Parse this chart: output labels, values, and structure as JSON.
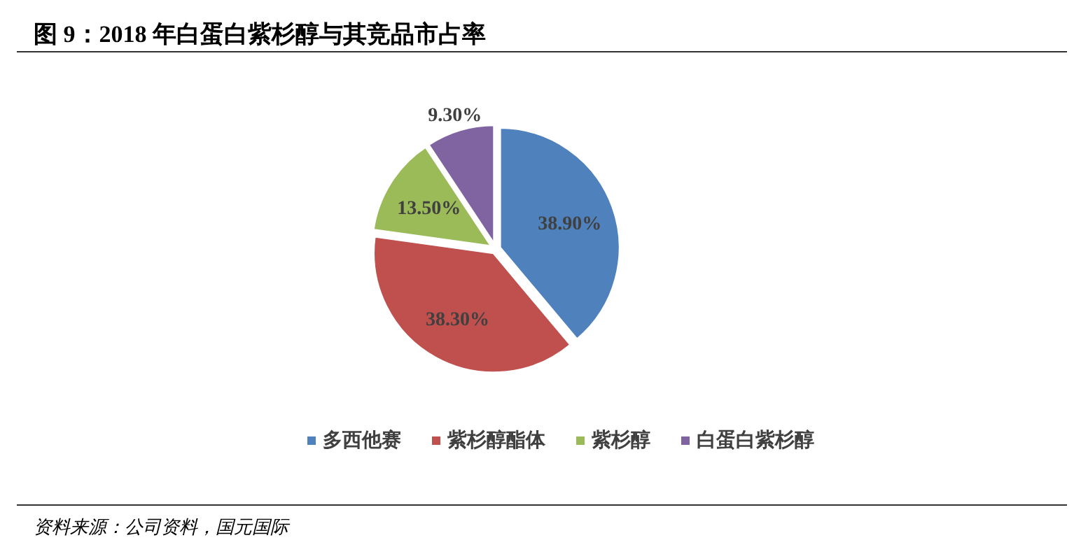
{
  "chart_data": {
    "type": "pie",
    "title": "图 9：2018 年白蛋白紫杉醇与其竞品市占率",
    "categories": [
      "多西他赛",
      "紫杉醇酯体",
      "紫杉醇",
      "白蛋白紫杉醇"
    ],
    "values": [
      38.9,
      38.3,
      13.5,
      9.3
    ],
    "colors": [
      "#4f81bd",
      "#c0504d",
      "#9bbb59",
      "#8064a2"
    ],
    "value_labels": [
      "38.90%",
      "38.30%",
      "13.50%",
      "9.30%"
    ],
    "legend": "bottom",
    "annotations": [
      "资料来源：公司资料，国元国际"
    ]
  }
}
